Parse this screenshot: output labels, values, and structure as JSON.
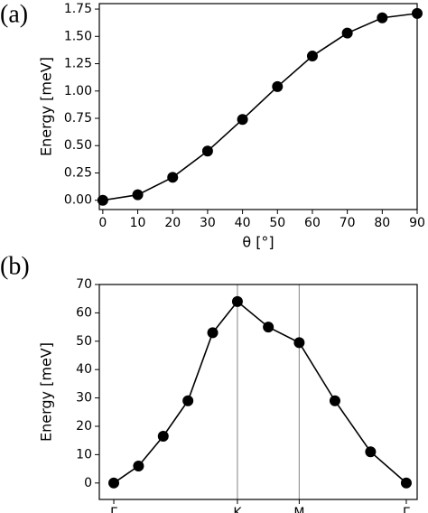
{
  "chart_data": [
    {
      "type": "line",
      "panel_label": "(a)",
      "xlabel": "θ [°]",
      "ylabel": "Energy [meV]",
      "x": [
        0,
        10,
        20,
        30,
        40,
        50,
        60,
        70,
        80,
        90
      ],
      "series": [
        {
          "color": "#000000",
          "values": [
            0.0,
            0.05,
            0.21,
            0.45,
            0.74,
            1.04,
            1.32,
            1.53,
            1.67,
            1.71
          ]
        }
      ],
      "xlim": [
        -1,
        90
      ],
      "xticks": [
        0,
        10,
        20,
        30,
        40,
        50,
        60,
        70,
        80,
        90
      ],
      "ylim": [
        -0.085,
        1.8
      ],
      "yticks": [
        {
          "value": 0,
          "label": "0.00"
        },
        0.25,
        {
          "value": 0.5,
          "label": "0.50"
        },
        0.75,
        {
          "value": 1,
          "label": "1.00"
        },
        1.25,
        {
          "value": 1.5,
          "label": "1.50"
        },
        1.75
      ]
    },
    {
      "type": "line",
      "panel_label": "(b)",
      "ylabel": "Energy [meV]",
      "x": [
        0,
        0.2,
        0.4,
        0.6,
        0.8,
        1.0,
        1.25,
        1.5,
        1.789,
        2.077,
        2.366
      ],
      "series": [
        {
          "color": "#000000",
          "values": [
            0,
            6,
            16.5,
            29,
            53,
            64,
            55,
            49.5,
            29,
            11,
            0
          ]
        }
      ],
      "xlim": [
        -0.117,
        2.454
      ],
      "xticks": [
        {
          "value": 0,
          "label": "Γ"
        },
        {
          "value": 1,
          "label": "K"
        },
        {
          "value": 1.5,
          "label": "M"
        },
        {
          "value": 2.366,
          "label": "Γ"
        }
      ],
      "vlines": [
        1,
        1.5
      ],
      "ylim": [
        -5.8,
        70
      ],
      "yticks": [
        0,
        10,
        20,
        30,
        40,
        50,
        60,
        70
      ]
    }
  ]
}
